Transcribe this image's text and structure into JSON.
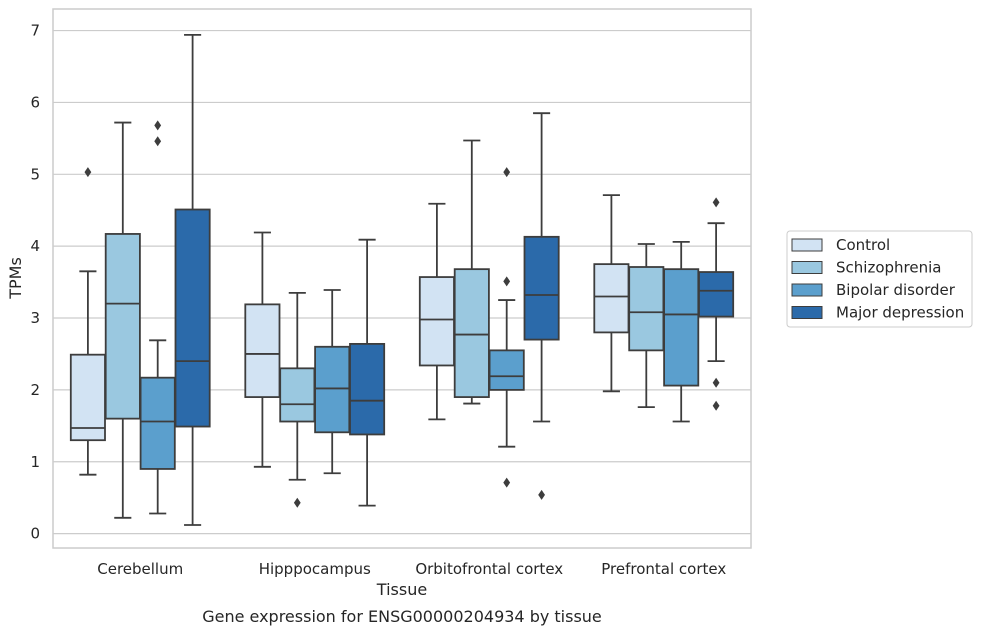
{
  "caption": "Gene expression for ENSG00000204934 by tissue",
  "chart_data": {
    "type": "box",
    "xlabel": "Tissue",
    "ylabel": "TPMs",
    "ylim": [
      -0.2,
      7.3
    ],
    "yticks": [
      0,
      1,
      2,
      3,
      4,
      5,
      6,
      7
    ],
    "grid": true,
    "legend_position": "right",
    "categories": [
      "Cerebellum",
      "Hipppocampus",
      "Orbitofrontal cortex",
      "Prefrontal cortex"
    ],
    "series": [
      {
        "name": "Control",
        "color": "#d2e3f3",
        "boxes": [
          {
            "whislo": 0.82,
            "q1": 1.3,
            "med": 1.47,
            "q3": 2.49,
            "whishi": 3.65,
            "fliers": [
              5.03
            ]
          },
          {
            "whislo": 0.93,
            "q1": 1.9,
            "med": 2.5,
            "q3": 3.19,
            "whishi": 4.19,
            "fliers": []
          },
          {
            "whislo": 1.59,
            "q1": 2.34,
            "med": 2.98,
            "q3": 3.57,
            "whishi": 4.59,
            "fliers": []
          },
          {
            "whislo": 1.98,
            "q1": 2.8,
            "med": 3.3,
            "q3": 3.75,
            "whishi": 4.71,
            "fliers": []
          }
        ]
      },
      {
        "name": "Schizophrenia",
        "color": "#9ac8e0",
        "boxes": [
          {
            "whislo": 0.22,
            "q1": 1.6,
            "med": 3.2,
            "q3": 4.17,
            "whishi": 5.72,
            "fliers": []
          },
          {
            "whislo": 0.75,
            "q1": 1.56,
            "med": 1.8,
            "q3": 2.3,
            "whishi": 3.35,
            "fliers": [
              0.43
            ]
          },
          {
            "whislo": 1.81,
            "q1": 1.9,
            "med": 2.77,
            "q3": 3.68,
            "whishi": 5.47,
            "fliers": []
          },
          {
            "whislo": 1.76,
            "q1": 2.55,
            "med": 3.08,
            "q3": 3.71,
            "whishi": 4.03,
            "fliers": []
          }
        ]
      },
      {
        "name": "Bipolar disorder",
        "color": "#5b9fcd",
        "boxes": [
          {
            "whislo": 0.28,
            "q1": 0.9,
            "med": 1.56,
            "q3": 2.17,
            "whishi": 2.69,
            "fliers": [
              5.46,
              5.68
            ]
          },
          {
            "whislo": 0.84,
            "q1": 1.41,
            "med": 2.02,
            "q3": 2.6,
            "whishi": 3.39,
            "fliers": []
          },
          {
            "whislo": 1.21,
            "q1": 2.0,
            "med": 2.19,
            "q3": 2.55,
            "whishi": 3.25,
            "fliers": [
              3.51,
              5.03,
              0.71
            ]
          },
          {
            "whislo": 1.56,
            "q1": 2.06,
            "med": 3.05,
            "q3": 3.68,
            "whishi": 4.06,
            "fliers": []
          }
        ]
      },
      {
        "name": "Major depression",
        "color": "#2b6aaa",
        "boxes": [
          {
            "whislo": 0.12,
            "q1": 1.49,
            "med": 2.4,
            "q3": 4.51,
            "whishi": 6.94,
            "fliers": []
          },
          {
            "whislo": 0.39,
            "q1": 1.38,
            "med": 1.85,
            "q3": 2.64,
            "whishi": 4.09,
            "fliers": []
          },
          {
            "whislo": 1.56,
            "q1": 2.7,
            "med": 3.32,
            "q3": 4.13,
            "whishi": 5.85,
            "fliers": [
              0.54
            ]
          },
          {
            "whislo": 2.4,
            "q1": 3.02,
            "med": 3.38,
            "q3": 3.64,
            "whishi": 4.32,
            "fliers": [
              4.61,
              2.1,
              1.78
            ]
          }
        ]
      }
    ]
  }
}
